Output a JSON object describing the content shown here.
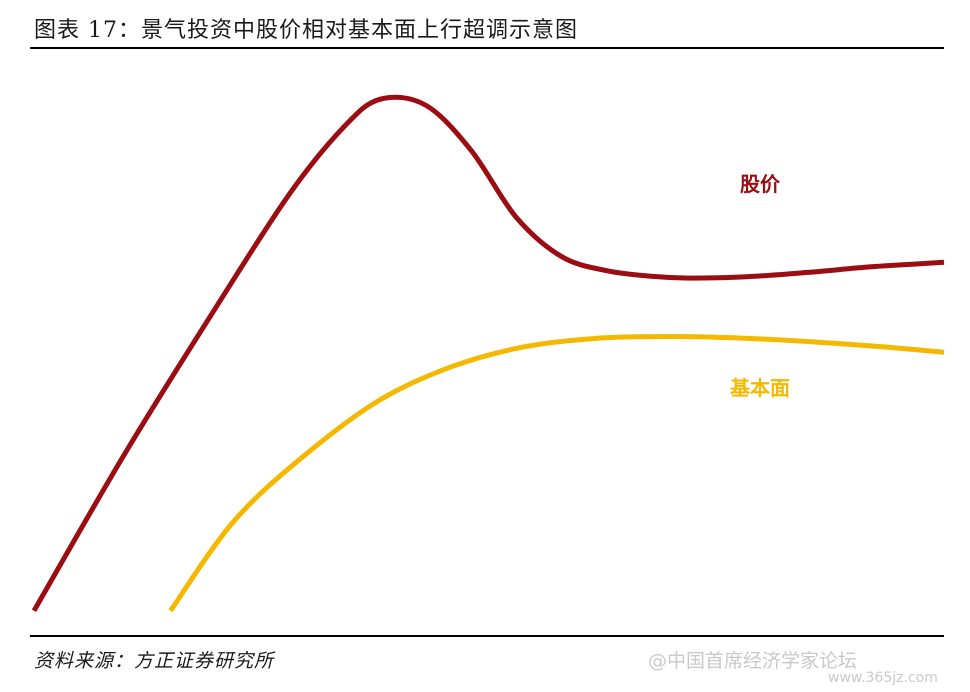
{
  "title": "图表 17：景气投资中股价相对基本面上行超调示意图",
  "source": "资料来源：方正证券研究所",
  "watermark": {
    "text": "@中国首席经济学家论坛",
    "url": "www.365jz.com"
  },
  "chart_data": {
    "type": "line",
    "title": "图表 17：景气投资中股价相对基本面上行超调示意图",
    "xlabel": "",
    "ylabel": "",
    "grid": false,
    "axes_visible": false,
    "series": [
      {
        "name": "股价",
        "color": "#9b0d12",
        "x": [
          0.0,
          0.1,
          0.2,
          0.28,
          0.34,
          0.38,
          0.43,
          0.48,
          0.53,
          0.58,
          0.63,
          0.68,
          0.72,
          0.78,
          0.85,
          0.92,
          1.0
        ],
        "y": [
          0.02,
          0.3,
          0.56,
          0.76,
          0.88,
          0.93,
          0.92,
          0.84,
          0.72,
          0.65,
          0.625,
          0.615,
          0.612,
          0.614,
          0.622,
          0.632,
          0.64
        ]
      },
      {
        "name": "基本面",
        "color": "#f5b800",
        "x": [
          0.15,
          0.22,
          0.3,
          0.38,
          0.46,
          0.54,
          0.62,
          0.7,
          0.78,
          0.86,
          0.93,
          1.0
        ],
        "y": [
          0.02,
          0.18,
          0.3,
          0.395,
          0.455,
          0.49,
          0.505,
          0.508,
          0.505,
          0.498,
          0.49,
          0.48
        ]
      }
    ]
  }
}
